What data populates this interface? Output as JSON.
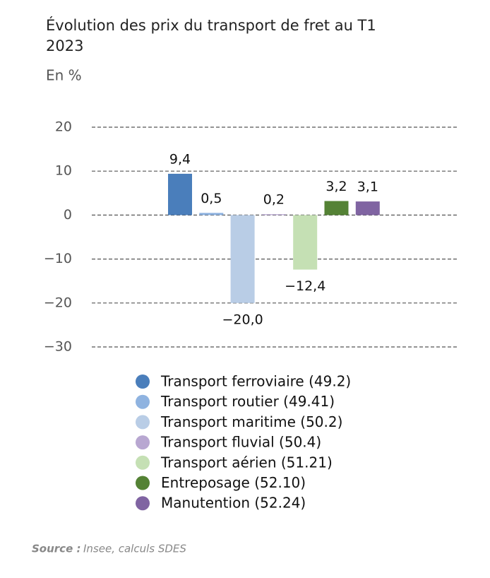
{
  "chart_data": {
    "type": "bar",
    "title": "Évolution des prix du transport de fret au T1 2023",
    "y_label": "En %",
    "categories": [
      "Transport ferroviaire (49.2)",
      "Transport routier (49.41)",
      "Transport maritime (50.2)",
      "Transport fluvial (50.4)",
      "Transport aérien (51.21)",
      "Entreposage (52.10)",
      "Manutention (52.24)"
    ],
    "values": [
      9.4,
      0.5,
      -20.0,
      0.2,
      -12.4,
      3.2,
      3.1
    ],
    "value_labels": [
      "9,4",
      "0,5",
      "−20,0",
      "0,2",
      "−12,4",
      "3,2",
      "3,1"
    ],
    "colors": [
      "#4a7ebb",
      "#8fb3e0",
      "#b9cde6",
      "#b8a7d1",
      "#c5e0b4",
      "#548235",
      "#8064a2"
    ],
    "ylim": [
      -30,
      20
    ],
    "yticks": [
      {
        "value": -30,
        "label": "−30"
      },
      {
        "value": -20,
        "label": "−20"
      },
      {
        "value": -10,
        "label": "−10"
      },
      0,
      10,
      20
    ],
    "grid": true,
    "source_label": "Source :",
    "source_text": "Insee, calculs SDES"
  }
}
